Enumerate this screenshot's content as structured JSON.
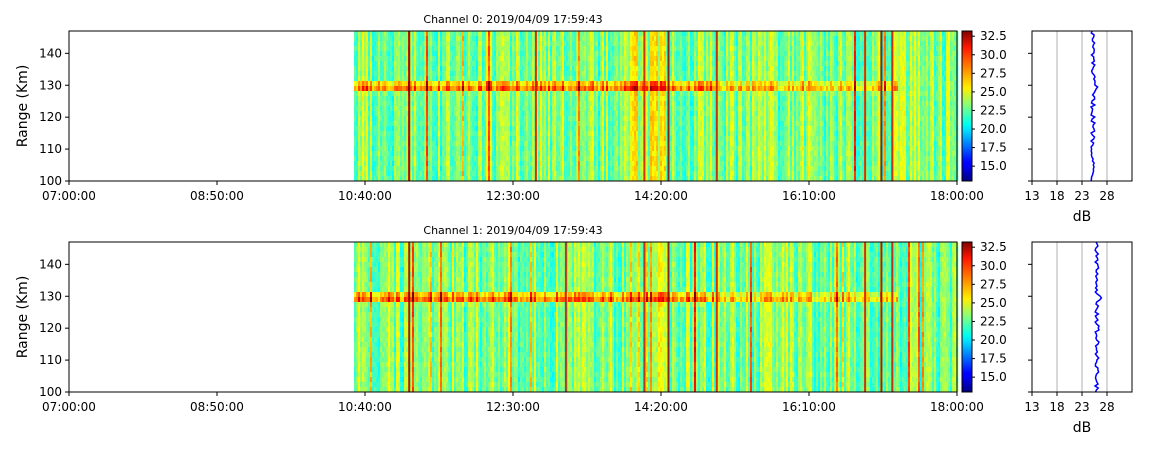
{
  "chart_data": [
    {
      "type": "heatmap",
      "title": "Channel 0: 2019/04/09 17:59:43",
      "ylabel": "Range (Km)",
      "xlabel": "",
      "x_ticks": [
        "07:00:00",
        "08:50:00",
        "10:40:00",
        "12:30:00",
        "14:20:00",
        "16:10:00",
        "18:00:00"
      ],
      "x_range_hours": [
        7,
        18
      ],
      "data_start_hour": 10.53,
      "y_ticks": [
        100,
        110,
        120,
        130,
        140
      ],
      "y_range": [
        100,
        147
      ],
      "echo_range_km": 129.5,
      "colorbar": {
        "ticks": [
          "15.0",
          "17.5",
          "20.0",
          "22.5",
          "25.0",
          "27.5",
          "30.0",
          "32.5"
        ],
        "range": [
          13,
          33.2
        ],
        "colormap": "jet"
      },
      "profile": {
        "xlabel": "dB",
        "x_ticks": [
          13,
          18,
          23,
          28
        ],
        "x_range": [
          13,
          33
        ],
        "mean_db": 25.2
      }
    },
    {
      "type": "heatmap",
      "title": "Channel 1: 2019/04/09 17:59:43",
      "ylabel": "Range (Km)",
      "xlabel": "",
      "x_ticks": [
        "07:00:00",
        "08:50:00",
        "10:40:00",
        "12:30:00",
        "14:20:00",
        "16:10:00",
        "18:00:00"
      ],
      "x_range_hours": [
        7,
        18
      ],
      "data_start_hour": 10.53,
      "y_ticks": [
        100,
        110,
        120,
        130,
        140
      ],
      "y_range": [
        100,
        147
      ],
      "echo_range_km": 129.5,
      "colorbar": {
        "ticks": [
          "15.0",
          "17.5",
          "20.0",
          "22.5",
          "25.0",
          "27.5",
          "30.0",
          "32.5"
        ],
        "range": [
          13,
          33.2
        ],
        "colormap": "jet"
      },
      "profile": {
        "xlabel": "dB",
        "x_ticks": [
          13,
          18,
          23,
          28
        ],
        "x_range": [
          13,
          33
        ],
        "mean_db": 26.0
      }
    }
  ]
}
